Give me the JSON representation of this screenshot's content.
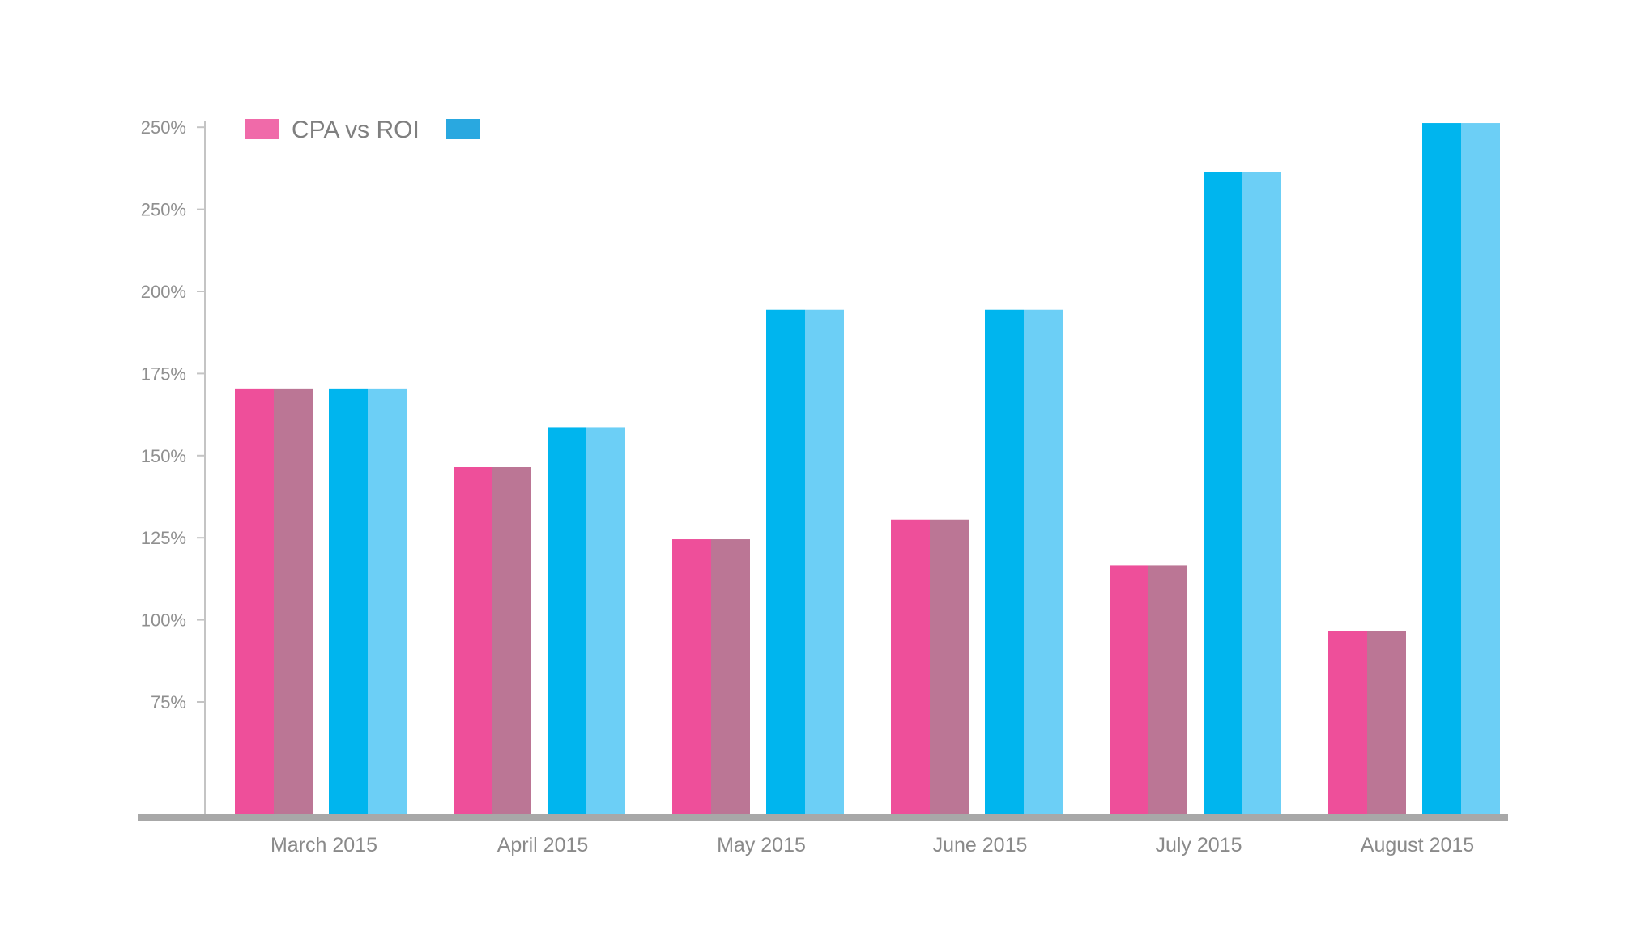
{
  "chart_data": {
    "type": "bar",
    "title": "",
    "xlabel": "",
    "ylabel": "",
    "categories": [
      "March 2015",
      "April 2015",
      "May 2015",
      "June 2015",
      "July 2015",
      "August 2015"
    ],
    "y_tick_labels": [
      "75%",
      "100%",
      "125%",
      "150%",
      "175%",
      "200%",
      "250%",
      "250%"
    ],
    "ylim": [
      40,
      252
    ],
    "grid": false,
    "legend": {
      "position": "top-left",
      "entries": [
        {
          "label": "CPA vs ROI",
          "color": "#f06aa9"
        },
        {
          "label": "",
          "color": "#29a8e0"
        }
      ]
    },
    "series": [
      {
        "values": [
          170,
          146,
          124,
          130,
          116,
          96
        ],
        "colors": [
          "#ee4f9a",
          "#bb7695"
        ]
      },
      {
        "values": [
          170,
          158,
          194,
          194,
          236,
          251
        ],
        "colors": [
          "#00b5ee",
          "#6ccff6"
        ]
      }
    ]
  }
}
